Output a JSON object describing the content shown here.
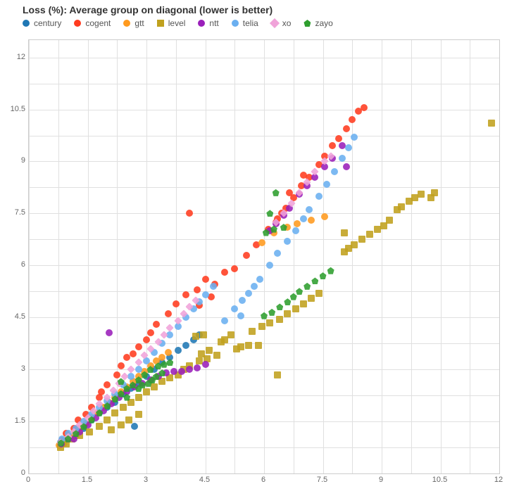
{
  "chart": {
    "type": "scatter",
    "title": "Loss (%): Average group on diagonal (lower is better)",
    "title_fontsize": 14,
    "title_fontweight": "bold",
    "label_fontsize": 12,
    "tick_fontsize": 11,
    "background_color": "#ffffff",
    "grid_color": "#e0e0e0",
    "axis_color": "#cccccc",
    "marker_size": 10,
    "xlim": [
      0,
      12
    ],
    "ylim": [
      0,
      12.5
    ],
    "xtick_step": 1.5,
    "ytick_step": 1.5,
    "xticks": [
      "0",
      "1.5",
      "3",
      "4.5",
      "6",
      "7.5",
      "9",
      "10.5",
      "12"
    ],
    "yticks": [
      "0",
      "1.5",
      "3",
      "4.5",
      "6",
      "7.5",
      "9",
      "10.5",
      "12"
    ],
    "series": [
      {
        "name": "century",
        "color": "#1f77b4",
        "marker": "circle",
        "points": [
          [
            0.8,
            0.9
          ],
          [
            1.0,
            1.0
          ],
          [
            1.2,
            1.1
          ],
          [
            1.4,
            1.3
          ],
          [
            1.6,
            1.55
          ],
          [
            1.8,
            1.75
          ],
          [
            2.0,
            1.9
          ],
          [
            2.2,
            2.05
          ],
          [
            2.4,
            2.3
          ],
          [
            2.6,
            2.45
          ],
          [
            2.8,
            2.6
          ],
          [
            2.7,
            1.35
          ],
          [
            3.0,
            2.8
          ],
          [
            3.2,
            3.0
          ],
          [
            3.4,
            3.2
          ],
          [
            3.6,
            3.35
          ],
          [
            3.8,
            3.55
          ],
          [
            4.0,
            3.7
          ],
          [
            4.2,
            3.85
          ],
          [
            4.35,
            4.0
          ]
        ]
      },
      {
        "name": "cogent",
        "color": "#ff3b1f",
        "marker": "circle",
        "points": [
          [
            0.85,
            0.95
          ],
          [
            0.95,
            1.15
          ],
          [
            1.15,
            1.3
          ],
          [
            1.25,
            1.55
          ],
          [
            1.45,
            1.7
          ],
          [
            1.6,
            1.9
          ],
          [
            1.8,
            2.2
          ],
          [
            2.0,
            2.55
          ],
          [
            1.85,
            2.35
          ],
          [
            2.25,
            2.85
          ],
          [
            2.35,
            3.1
          ],
          [
            2.5,
            3.35
          ],
          [
            2.65,
            3.45
          ],
          [
            2.8,
            3.65
          ],
          [
            3.0,
            3.85
          ],
          [
            3.1,
            4.05
          ],
          [
            3.25,
            4.3
          ],
          [
            3.55,
            4.6
          ],
          [
            3.75,
            4.9
          ],
          [
            4.0,
            5.15
          ],
          [
            4.3,
            5.3
          ],
          [
            4.5,
            5.6
          ],
          [
            4.75,
            5.45
          ],
          [
            5.0,
            5.8
          ],
          [
            4.35,
            4.85
          ],
          [
            4.65,
            5.1
          ],
          [
            4.1,
            7.5
          ],
          [
            5.25,
            5.9
          ],
          [
            5.55,
            6.3
          ],
          [
            5.8,
            6.6
          ],
          [
            6.1,
            7.05
          ],
          [
            6.35,
            7.35
          ],
          [
            6.55,
            7.65
          ],
          [
            6.75,
            7.95
          ],
          [
            6.95,
            8.3
          ],
          [
            7.15,
            8.55
          ],
          [
            7.4,
            8.9
          ],
          [
            7.55,
            9.15
          ],
          [
            7.75,
            9.45
          ],
          [
            7.9,
            9.65
          ],
          [
            8.1,
            9.95
          ],
          [
            8.25,
            10.2
          ],
          [
            8.4,
            10.45
          ],
          [
            8.55,
            10.55
          ],
          [
            6.65,
            8.1
          ],
          [
            6.45,
            7.5
          ],
          [
            6.3,
            7.25
          ],
          [
            7.0,
            8.6
          ]
        ]
      },
      {
        "name": "gtt",
        "color": "#ff9a1e",
        "marker": "circle",
        "points": [
          [
            0.78,
            0.82
          ],
          [
            0.9,
            0.88
          ],
          [
            1.0,
            1.05
          ],
          [
            1.15,
            1.15
          ],
          [
            1.3,
            1.3
          ],
          [
            1.45,
            1.45
          ],
          [
            1.6,
            1.6
          ],
          [
            1.75,
            1.75
          ],
          [
            1.9,
            1.9
          ],
          [
            2.05,
            2.05
          ],
          [
            2.2,
            2.2
          ],
          [
            2.35,
            2.35
          ],
          [
            2.5,
            2.5
          ],
          [
            2.65,
            2.65
          ],
          [
            2.8,
            2.8
          ],
          [
            2.95,
            2.95
          ],
          [
            3.1,
            3.1
          ],
          [
            3.25,
            3.25
          ],
          [
            3.4,
            3.35
          ],
          [
            3.55,
            3.5
          ],
          [
            5.95,
            6.65
          ],
          [
            6.25,
            6.95
          ],
          [
            6.6,
            7.1
          ],
          [
            6.85,
            7.2
          ],
          [
            7.2,
            7.3
          ],
          [
            7.55,
            7.4
          ]
        ]
      },
      {
        "name": "level",
        "color": "#c0a11e",
        "marker": "square",
        "points": [
          [
            0.8,
            0.75
          ],
          [
            0.95,
            0.85
          ],
          [
            1.1,
            1.0
          ],
          [
            1.3,
            1.1
          ],
          [
            1.55,
            1.2
          ],
          [
            1.8,
            1.35
          ],
          [
            2.0,
            1.55
          ],
          [
            2.2,
            1.75
          ],
          [
            2.1,
            1.25
          ],
          [
            2.35,
            1.4
          ],
          [
            2.55,
            1.55
          ],
          [
            2.8,
            1.7
          ],
          [
            2.4,
            1.9
          ],
          [
            2.6,
            2.05
          ],
          [
            2.8,
            2.2
          ],
          [
            3.0,
            2.35
          ],
          [
            3.2,
            2.5
          ],
          [
            3.4,
            2.65
          ],
          [
            3.6,
            2.75
          ],
          [
            3.8,
            2.85
          ],
          [
            3.95,
            3.0
          ],
          [
            4.1,
            3.1
          ],
          [
            4.35,
            3.25
          ],
          [
            4.55,
            3.3
          ],
          [
            4.8,
            3.4
          ],
          [
            4.9,
            3.8
          ],
          [
            5.0,
            3.85
          ],
          [
            5.15,
            4.0
          ],
          [
            4.6,
            3.55
          ],
          [
            4.25,
            3.95
          ],
          [
            4.45,
            4.0
          ],
          [
            4.4,
            3.45
          ],
          [
            5.3,
            3.6
          ],
          [
            5.4,
            3.65
          ],
          [
            5.6,
            3.7
          ],
          [
            5.7,
            4.1
          ],
          [
            5.95,
            4.25
          ],
          [
            6.15,
            4.35
          ],
          [
            5.85,
            3.7
          ],
          [
            6.35,
            2.85
          ],
          [
            6.4,
            4.45
          ],
          [
            6.6,
            4.6
          ],
          [
            6.8,
            4.75
          ],
          [
            7.0,
            4.9
          ],
          [
            7.2,
            5.05
          ],
          [
            7.4,
            5.2
          ],
          [
            8.05,
            6.4
          ],
          [
            8.05,
            6.95
          ],
          [
            8.15,
            6.5
          ],
          [
            8.3,
            6.6
          ],
          [
            8.5,
            6.75
          ],
          [
            8.7,
            6.9
          ],
          [
            8.9,
            7.05
          ],
          [
            9.05,
            7.15
          ],
          [
            9.2,
            7.3
          ],
          [
            9.4,
            7.6
          ],
          [
            9.5,
            7.7
          ],
          [
            9.7,
            7.85
          ],
          [
            9.85,
            7.95
          ],
          [
            10.0,
            8.05
          ],
          [
            10.25,
            7.95
          ],
          [
            10.35,
            8.1
          ],
          [
            11.8,
            10.1
          ]
        ]
      },
      {
        "name": "ntt",
        "color": "#9a1fba",
        "marker": "circle",
        "points": [
          [
            0.82,
            0.85
          ],
          [
            1.0,
            1.0
          ],
          [
            1.15,
            1.0
          ],
          [
            1.3,
            1.2
          ],
          [
            1.5,
            1.4
          ],
          [
            1.7,
            1.6
          ],
          [
            1.9,
            1.8
          ],
          [
            2.1,
            2.0
          ],
          [
            2.3,
            2.2
          ],
          [
            2.5,
            2.35
          ],
          [
            2.05,
            4.05
          ],
          [
            2.7,
            2.5
          ],
          [
            2.9,
            2.6
          ],
          [
            3.1,
            2.7
          ],
          [
            3.3,
            2.8
          ],
          [
            3.5,
            2.9
          ],
          [
            3.7,
            2.95
          ],
          [
            3.9,
            2.95
          ],
          [
            4.1,
            3.0
          ],
          [
            4.3,
            3.05
          ],
          [
            4.5,
            3.15
          ],
          [
            6.15,
            7.0
          ],
          [
            6.3,
            7.2
          ],
          [
            6.5,
            7.45
          ],
          [
            6.65,
            7.65
          ],
          [
            6.9,
            8.05
          ],
          [
            7.1,
            8.3
          ],
          [
            7.3,
            8.55
          ],
          [
            7.55,
            8.85
          ],
          [
            7.75,
            9.1
          ],
          [
            8.0,
            9.45
          ],
          [
            8.1,
            8.85
          ]
        ]
      },
      {
        "name": "telia",
        "color": "#6aaff0",
        "marker": "circle",
        "points": [
          [
            0.85,
            1.0
          ],
          [
            1.0,
            1.15
          ],
          [
            1.2,
            1.3
          ],
          [
            1.4,
            1.5
          ],
          [
            1.6,
            1.7
          ],
          [
            1.8,
            1.9
          ],
          [
            2.0,
            2.1
          ],
          [
            2.2,
            2.3
          ],
          [
            2.4,
            2.55
          ],
          [
            2.6,
            2.8
          ],
          [
            2.8,
            3.0
          ],
          [
            3.0,
            3.25
          ],
          [
            3.2,
            3.5
          ],
          [
            3.4,
            3.75
          ],
          [
            3.6,
            4.0
          ],
          [
            3.8,
            4.25
          ],
          [
            4.0,
            4.5
          ],
          [
            4.2,
            4.75
          ],
          [
            4.35,
            4.95
          ],
          [
            4.5,
            5.15
          ],
          [
            4.7,
            5.4
          ],
          [
            5.0,
            4.4
          ],
          [
            5.25,
            4.75
          ],
          [
            5.45,
            5.0
          ],
          [
            5.4,
            4.55
          ],
          [
            5.6,
            5.2
          ],
          [
            5.75,
            5.4
          ],
          [
            5.9,
            5.6
          ],
          [
            6.15,
            6.0
          ],
          [
            6.35,
            6.35
          ],
          [
            6.6,
            6.7
          ],
          [
            6.8,
            7.0
          ],
          [
            7.0,
            7.35
          ],
          [
            7.15,
            7.6
          ],
          [
            7.4,
            8.0
          ],
          [
            7.6,
            8.35
          ],
          [
            7.8,
            8.7
          ],
          [
            8.0,
            9.1
          ],
          [
            8.15,
            9.4
          ],
          [
            8.3,
            9.7
          ]
        ]
      },
      {
        "name": "xo",
        "color": "#f0a3d9",
        "marker": "diamond",
        "points": [
          [
            0.8,
            0.9
          ],
          [
            1.0,
            1.05
          ],
          [
            1.15,
            1.2
          ],
          [
            1.3,
            1.4
          ],
          [
            1.5,
            1.6
          ],
          [
            1.65,
            1.8
          ],
          [
            1.8,
            2.0
          ],
          [
            2.0,
            2.2
          ],
          [
            2.15,
            2.4
          ],
          [
            2.3,
            2.6
          ],
          [
            2.45,
            2.8
          ],
          [
            2.6,
            3.0
          ],
          [
            2.8,
            3.2
          ],
          [
            2.95,
            3.4
          ],
          [
            3.1,
            3.6
          ],
          [
            3.3,
            3.8
          ],
          [
            3.45,
            4.0
          ],
          [
            3.6,
            4.2
          ],
          [
            3.8,
            4.4
          ],
          [
            3.95,
            4.6
          ],
          [
            4.1,
            4.8
          ],
          [
            4.25,
            5.0
          ],
          [
            6.3,
            7.25
          ],
          [
            6.5,
            7.5
          ],
          [
            6.7,
            7.8
          ],
          [
            6.9,
            8.1
          ],
          [
            7.1,
            8.4
          ],
          [
            7.3,
            8.7
          ],
          [
            7.55,
            9.0
          ],
          [
            7.7,
            9.15
          ]
        ]
      },
      {
        "name": "zayo",
        "color": "#2e9e2e",
        "marker": "pentagon",
        "points": [
          [
            0.82,
            0.88
          ],
          [
            1.0,
            1.0
          ],
          [
            1.2,
            1.15
          ],
          [
            1.4,
            1.35
          ],
          [
            1.6,
            1.55
          ],
          [
            1.8,
            1.75
          ],
          [
            2.0,
            1.95
          ],
          [
            2.2,
            2.15
          ],
          [
            2.35,
            2.3
          ],
          [
            2.5,
            2.2
          ],
          [
            2.5,
            2.45
          ],
          [
            2.65,
            2.55
          ],
          [
            2.35,
            2.65
          ],
          [
            2.8,
            2.45
          ],
          [
            2.9,
            2.55
          ],
          [
            2.8,
            2.7
          ],
          [
            2.95,
            2.85
          ],
          [
            3.1,
            3.0
          ],
          [
            3.05,
            2.6
          ],
          [
            3.15,
            2.7
          ],
          [
            3.25,
            2.8
          ],
          [
            3.3,
            3.1
          ],
          [
            3.45,
            3.15
          ],
          [
            3.6,
            3.2
          ],
          [
            3.4,
            2.9
          ],
          [
            6.0,
            4.55
          ],
          [
            6.2,
            4.65
          ],
          [
            6.4,
            4.8
          ],
          [
            6.6,
            4.95
          ],
          [
            6.75,
            5.1
          ],
          [
            6.9,
            5.25
          ],
          [
            7.1,
            5.4
          ],
          [
            7.3,
            5.55
          ],
          [
            7.5,
            5.7
          ],
          [
            7.7,
            5.85
          ],
          [
            6.05,
            6.95
          ],
          [
            6.25,
            7.05
          ],
          [
            6.5,
            7.1
          ],
          [
            6.15,
            7.5
          ],
          [
            6.3,
            8.1
          ]
        ]
      }
    ]
  }
}
